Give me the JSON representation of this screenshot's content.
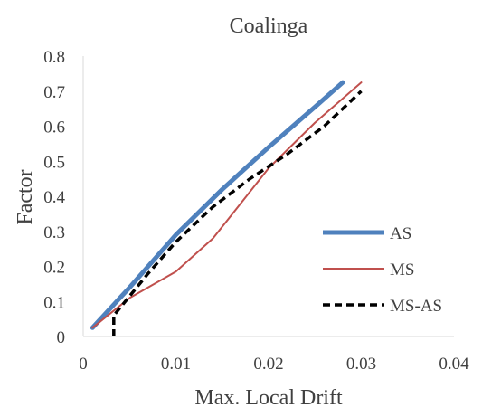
{
  "chart_data": {
    "type": "line",
    "title": "Coalinga",
    "xlabel": "Max. Local Drift",
    "ylabel": "Factor",
    "xlim": [
      0,
      0.04
    ],
    "ylim": [
      0,
      0.8
    ],
    "x_ticks": [
      "0",
      "0.01",
      "0.02",
      "0.03",
      "0.04"
    ],
    "y_ticks": [
      "0",
      "0.1",
      "0.2",
      "0.3",
      "0.4",
      "0.5",
      "0.6",
      "0.7",
      "0.8"
    ],
    "grid": false,
    "legend_position": "right",
    "series": [
      {
        "name": "AS",
        "color": "#4f81bd",
        "style": "solid-thick",
        "points": [
          [
            0.001,
            0.025
          ],
          [
            0.005,
            0.14
          ],
          [
            0.01,
            0.29
          ],
          [
            0.015,
            0.42
          ],
          [
            0.02,
            0.54
          ],
          [
            0.025,
            0.655
          ],
          [
            0.028,
            0.725
          ]
        ]
      },
      {
        "name": "MS",
        "color": "#c0504d",
        "style": "solid-thin",
        "points": [
          [
            0.001,
            0.025
          ],
          [
            0.005,
            0.11
          ],
          [
            0.01,
            0.185
          ],
          [
            0.014,
            0.28
          ],
          [
            0.017,
            0.38
          ],
          [
            0.02,
            0.48
          ],
          [
            0.025,
            0.61
          ],
          [
            0.03,
            0.725
          ]
        ]
      },
      {
        "name": "MS-AS",
        "color": "#000000",
        "style": "dashed",
        "points": [
          [
            0.0033,
            0.0
          ],
          [
            0.0033,
            0.06
          ],
          [
            0.007,
            0.18
          ],
          [
            0.01,
            0.27
          ],
          [
            0.014,
            0.37
          ],
          [
            0.018,
            0.45
          ],
          [
            0.022,
            0.52
          ],
          [
            0.026,
            0.6
          ],
          [
            0.03,
            0.7
          ]
        ]
      }
    ]
  }
}
